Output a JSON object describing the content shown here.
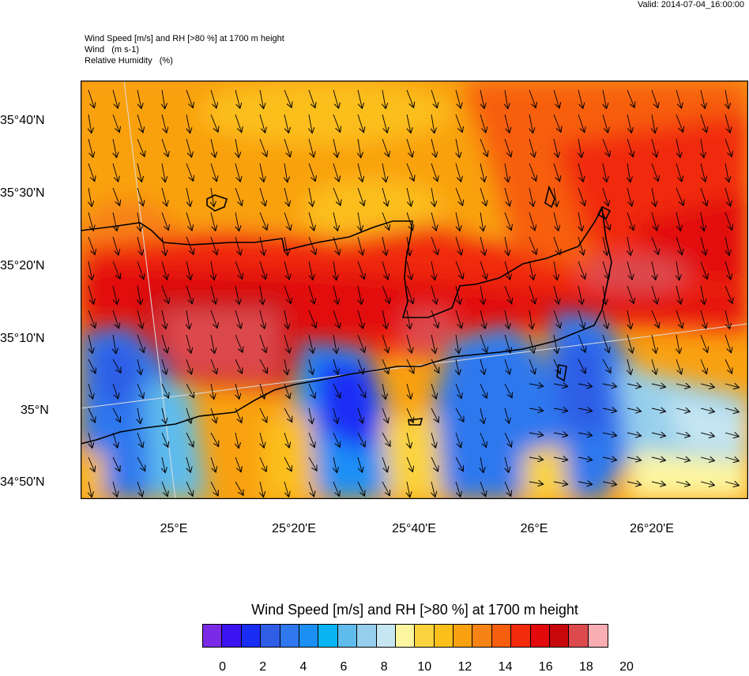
{
  "valid_label": "Valid: 2014-07-04_16:00:00",
  "subtitles": {
    "line1": "Wind Speed [m/s] and RH [>80 %] at 1700 m height",
    "line2": "Wind   (m s-1)",
    "line3": "Relative Humidity   (%)"
  },
  "map": {
    "lat_labels": [
      "35°40'N",
      "35°30'N",
      "35°20'N",
      "35°10'N",
      "35°N",
      "34°50'N"
    ],
    "lon_labels": [
      "25°E",
      "25°20'E",
      "25°40'E",
      "26°E",
      "26°20'E"
    ],
    "wind_direction": "north-northwest to south-southeast, turning westerly in the south-east",
    "coastline": "Crete"
  },
  "colorbar": {
    "title": "Wind Speed [m/s] and RH [>80 %] at 1700 m height",
    "colors": [
      "#7b2be6",
      "#3a14f0",
      "#1a2df5",
      "#2f5de6",
      "#2f78ee",
      "#1c8ff5",
      "#0ab4f2",
      "#5fbcec",
      "#96cfeb",
      "#c6e6f2",
      "#fdf6a0",
      "#fad33f",
      "#fbbf1b",
      "#f9a110",
      "#f78314",
      "#f75e0e",
      "#f12b0c",
      "#e20a0b",
      "#c8080b",
      "#dc4a4e",
      "#f9aeb3"
    ],
    "tick_labels": [
      "0",
      "2",
      "4",
      "6",
      "8",
      "10",
      "12",
      "14",
      "16",
      "18",
      "20"
    ]
  }
}
